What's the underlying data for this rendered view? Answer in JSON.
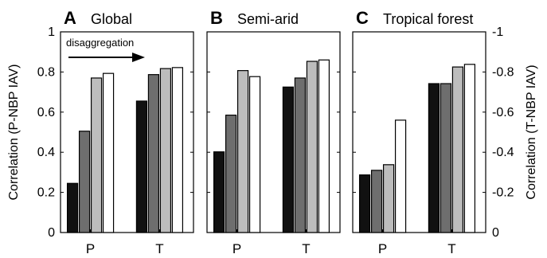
{
  "chart_data": {
    "type": "bar",
    "ylabel_left": "Correlation (P-NBP IAV)",
    "ylabel_right": "Correlation (T-NBP IAV)",
    "ylim": [
      0,
      1
    ],
    "left_ticks": [
      "0",
      "0.2",
      "0.4",
      "0.6",
      "0.8",
      "1"
    ],
    "right_ticks": [
      "0",
      "-0.2",
      "-0.4",
      "-0.6",
      "-0.8",
      "-1"
    ],
    "annotation": "disaggregation",
    "bar_colors": [
      "#111111",
      "#6e6e6e",
      "#bdbdbd",
      "#ffffff"
    ],
    "categories": [
      "P",
      "T"
    ],
    "panels": [
      {
        "letter": "A",
        "title": "Global",
        "values": [
          [
            0.245,
            0.505,
            0.77,
            0.793
          ],
          [
            0.655,
            0.787,
            0.817,
            0.822
          ]
        ]
      },
      {
        "letter": "B",
        "title": "Semi-arid",
        "values": [
          [
            0.402,
            0.585,
            0.807,
            0.777
          ],
          [
            0.725,
            0.77,
            0.853,
            0.86
          ]
        ]
      },
      {
        "letter": "C",
        "title": "Tropical forest",
        "values": [
          [
            0.287,
            0.31,
            0.338,
            0.56
          ],
          [
            0.742,
            0.742,
            0.825,
            0.838
          ]
        ]
      }
    ]
  }
}
